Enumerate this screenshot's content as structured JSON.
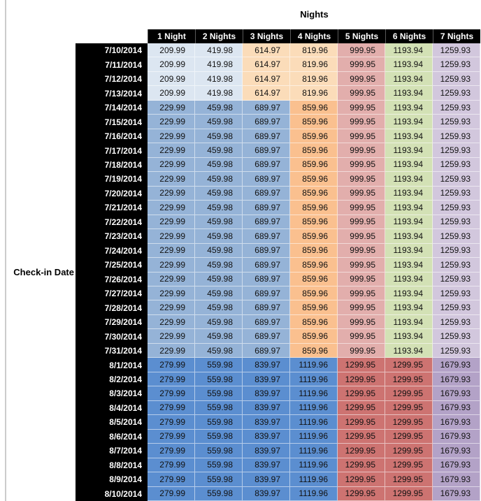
{
  "chart_data": {
    "type": "table",
    "title": "Nights",
    "row_axis_label": "Check-in Date",
    "columns": [
      "1 Night",
      "2 Nights",
      "3 Nights",
      "4 Nights",
      "5 Nights",
      "6 Nights",
      "7 Nights"
    ],
    "header_bg": "#000000",
    "header_text": "#ffffff",
    "palette": {
      "blue_light": "#dce6f1",
      "blue_medium": "#95b3d7",
      "blue_dark": "#5b8ed0",
      "orange_light": "#fbdcb9",
      "orange_medium": "#fac08f",
      "red_light": "#e2aeac",
      "red_dark": "#cd7371",
      "green_light": "#d3e1b5",
      "purple_light": "#d2c7dd",
      "purple_dark": "#b3a2c7"
    },
    "band_cell_colors": {
      "early_july": [
        "blue_light",
        "blue_light",
        "orange_light",
        "orange_light",
        "red_light",
        "green_light",
        "purple_light"
      ],
      "mid_july": [
        "blue_medium",
        "blue_medium",
        "blue_medium",
        "orange_medium",
        "red_light",
        "green_light",
        "purple_light"
      ],
      "august": [
        "blue_dark",
        "blue_dark",
        "blue_dark",
        "blue_dark",
        "red_dark",
        "red_dark",
        "purple_dark"
      ]
    },
    "rows": [
      {
        "date": "7/10/2014",
        "band": "early_july",
        "values": [
          "209.99",
          "419.98",
          "614.97",
          "819.96",
          "999.95",
          "1193.94",
          "1259.93"
        ]
      },
      {
        "date": "7/11/2014",
        "band": "early_july",
        "values": [
          "209.99",
          "419.98",
          "614.97",
          "819.96",
          "999.95",
          "1193.94",
          "1259.93"
        ]
      },
      {
        "date": "7/12/2014",
        "band": "early_july",
        "values": [
          "209.99",
          "419.98",
          "614.97",
          "819.96",
          "999.95",
          "1193.94",
          "1259.93"
        ]
      },
      {
        "date": "7/13/2014",
        "band": "early_july",
        "values": [
          "209.99",
          "419.98",
          "614.97",
          "819.96",
          "999.95",
          "1193.94",
          "1259.93"
        ]
      },
      {
        "date": "7/14/2014",
        "band": "mid_july",
        "values": [
          "229.99",
          "459.98",
          "689.97",
          "859.96",
          "999.95",
          "1193.94",
          "1259.93"
        ]
      },
      {
        "date": "7/15/2014",
        "band": "mid_july",
        "values": [
          "229.99",
          "459.98",
          "689.97",
          "859.96",
          "999.95",
          "1193.94",
          "1259.93"
        ]
      },
      {
        "date": "7/16/2014",
        "band": "mid_july",
        "values": [
          "229.99",
          "459.98",
          "689.97",
          "859.96",
          "999.95",
          "1193.94",
          "1259.93"
        ]
      },
      {
        "date": "7/17/2014",
        "band": "mid_july",
        "values": [
          "229.99",
          "459.98",
          "689.97",
          "859.96",
          "999.95",
          "1193.94",
          "1259.93"
        ]
      },
      {
        "date": "7/18/2014",
        "band": "mid_july",
        "values": [
          "229.99",
          "459.98",
          "689.97",
          "859.96",
          "999.95",
          "1193.94",
          "1259.93"
        ]
      },
      {
        "date": "7/19/2014",
        "band": "mid_july",
        "values": [
          "229.99",
          "459.98",
          "689.97",
          "859.96",
          "999.95",
          "1193.94",
          "1259.93"
        ]
      },
      {
        "date": "7/20/2014",
        "band": "mid_july",
        "values": [
          "229.99",
          "459.98",
          "689.97",
          "859.96",
          "999.95",
          "1193.94",
          "1259.93"
        ]
      },
      {
        "date": "7/21/2014",
        "band": "mid_july",
        "values": [
          "229.99",
          "459.98",
          "689.97",
          "859.96",
          "999.95",
          "1193.94",
          "1259.93"
        ]
      },
      {
        "date": "7/22/2014",
        "band": "mid_july",
        "values": [
          "229.99",
          "459.98",
          "689.97",
          "859.96",
          "999.95",
          "1193.94",
          "1259.93"
        ]
      },
      {
        "date": "7/23/2014",
        "band": "mid_july",
        "values": [
          "229.99",
          "459.98",
          "689.97",
          "859.96",
          "999.95",
          "1193.94",
          "1259.93"
        ]
      },
      {
        "date": "7/24/2014",
        "band": "mid_july",
        "values": [
          "229.99",
          "459.98",
          "689.97",
          "859.96",
          "999.95",
          "1193.94",
          "1259.93"
        ]
      },
      {
        "date": "7/25/2014",
        "band": "mid_july",
        "values": [
          "229.99",
          "459.98",
          "689.97",
          "859.96",
          "999.95",
          "1193.94",
          "1259.93"
        ]
      },
      {
        "date": "7/26/2014",
        "band": "mid_july",
        "values": [
          "229.99",
          "459.98",
          "689.97",
          "859.96",
          "999.95",
          "1193.94",
          "1259.93"
        ]
      },
      {
        "date": "7/27/2014",
        "band": "mid_july",
        "values": [
          "229.99",
          "459.98",
          "689.97",
          "859.96",
          "999.95",
          "1193.94",
          "1259.93"
        ]
      },
      {
        "date": "7/28/2014",
        "band": "mid_july",
        "values": [
          "229.99",
          "459.98",
          "689.97",
          "859.96",
          "999.95",
          "1193.94",
          "1259.93"
        ]
      },
      {
        "date": "7/29/2014",
        "band": "mid_july",
        "values": [
          "229.99",
          "459.98",
          "689.97",
          "859.96",
          "999.95",
          "1193.94",
          "1259.93"
        ]
      },
      {
        "date": "7/30/2014",
        "band": "mid_july",
        "values": [
          "229.99",
          "459.98",
          "689.97",
          "859.96",
          "999.95",
          "1193.94",
          "1259.93"
        ]
      },
      {
        "date": "7/31/2014",
        "band": "mid_july",
        "values": [
          "229.99",
          "459.98",
          "689.97",
          "859.96",
          "999.95",
          "1193.94",
          "1259.93"
        ]
      },
      {
        "date": "8/1/2014",
        "band": "august",
        "values": [
          "279.99",
          "559.98",
          "839.97",
          "1119.96",
          "1299.95",
          "1299.95",
          "1679.93"
        ]
      },
      {
        "date": "8/2/2014",
        "band": "august",
        "values": [
          "279.99",
          "559.98",
          "839.97",
          "1119.96",
          "1299.95",
          "1299.95",
          "1679.93"
        ]
      },
      {
        "date": "8/3/2014",
        "band": "august",
        "values": [
          "279.99",
          "559.98",
          "839.97",
          "1119.96",
          "1299.95",
          "1299.95",
          "1679.93"
        ]
      },
      {
        "date": "8/4/2014",
        "band": "august",
        "values": [
          "279.99",
          "559.98",
          "839.97",
          "1119.96",
          "1299.95",
          "1299.95",
          "1679.93"
        ]
      },
      {
        "date": "8/5/2014",
        "band": "august",
        "values": [
          "279.99",
          "559.98",
          "839.97",
          "1119.96",
          "1299.95",
          "1299.95",
          "1679.93"
        ]
      },
      {
        "date": "8/6/2014",
        "band": "august",
        "values": [
          "279.99",
          "559.98",
          "839.97",
          "1119.96",
          "1299.95",
          "1299.95",
          "1679.93"
        ]
      },
      {
        "date": "8/7/2014",
        "band": "august",
        "values": [
          "279.99",
          "559.98",
          "839.97",
          "1119.96",
          "1299.95",
          "1299.95",
          "1679.93"
        ]
      },
      {
        "date": "8/8/2014",
        "band": "august",
        "values": [
          "279.99",
          "559.98",
          "839.97",
          "1119.96",
          "1299.95",
          "1299.95",
          "1679.93"
        ]
      },
      {
        "date": "8/9/2014",
        "band": "august",
        "values": [
          "279.99",
          "559.98",
          "839.97",
          "1119.96",
          "1299.95",
          "1299.95",
          "1679.93"
        ]
      },
      {
        "date": "8/10/2014",
        "band": "august",
        "values": [
          "279.99",
          "559.98",
          "839.97",
          "1119.96",
          "1299.95",
          "1299.95",
          "1679.93"
        ]
      }
    ]
  }
}
